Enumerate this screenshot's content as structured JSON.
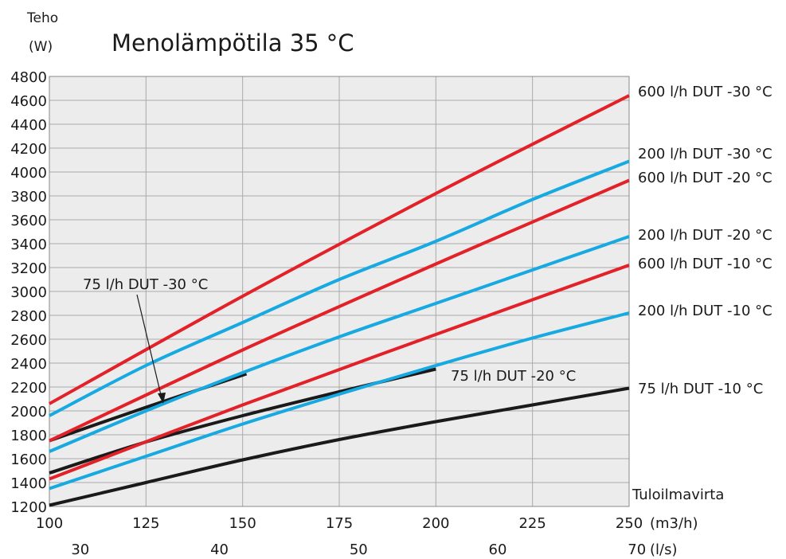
{
  "chart_data": {
    "type": "line",
    "title": "Menolämpötila 35 °C",
    "ylabel_line1": "Teho",
    "ylabel_line2": "(W)",
    "xlabel_line1": "Tuloilmavirta",
    "xlabel_unit_primary": "(m3/h)",
    "xlabel_unit_secondary": "(l/s)",
    "xlim": [
      100,
      250
    ],
    "ylim": [
      1200,
      4800
    ],
    "grid": true,
    "x_ticks": [
      "100",
      "125",
      "150",
      "175",
      "200",
      "225",
      "250"
    ],
    "y_ticks": [
      "1200",
      "1400",
      "1600",
      "1800",
      "2000",
      "2200",
      "2400",
      "2600",
      "2800",
      "3000",
      "3200",
      "3400",
      "3600",
      "3800",
      "4000",
      "4200",
      "4400",
      "4600",
      "4800"
    ],
    "x2_ticks": [
      {
        "ls": 30,
        "label": "30"
      },
      {
        "ls": 40,
        "label": "40"
      },
      {
        "ls": 50,
        "label": "50"
      },
      {
        "ls": 60,
        "label": "60"
      },
      {
        "ls": 70,
        "label": "70"
      }
    ],
    "colors": {
      "red": "#e32128",
      "blue": "#17a9e1",
      "black": "#1a1a1a",
      "grid": "#aaaaaa",
      "plot_bg": "#ececec"
    },
    "series": [
      {
        "name": "600 l/h DUT -30 °C",
        "color": "red",
        "x": [
          100,
          150,
          200,
          250
        ],
        "y": [
          2060,
          2960,
          3820,
          4640
        ]
      },
      {
        "name": "200 l/h DUT -30 °C",
        "color": "blue",
        "x": [
          100,
          125,
          150,
          175,
          200,
          225,
          250
        ],
        "y": [
          1960,
          2380,
          2740,
          3100,
          3420,
          3770,
          4090
        ]
      },
      {
        "name": "600 l/h DUT -20 °C",
        "color": "red",
        "x": [
          100,
          150,
          200,
          250
        ],
        "y": [
          1750,
          2510,
          3230,
          3930
        ]
      },
      {
        "name": "200 l/h DUT -20 °C",
        "color": "blue",
        "x": [
          100,
          125,
          150,
          175,
          200,
          225,
          250
        ],
        "y": [
          1660,
          2000,
          2320,
          2620,
          2900,
          3180,
          3460
        ]
      },
      {
        "name": "600 l/h DUT -10 °C",
        "color": "red",
        "x": [
          100,
          150,
          200,
          250
        ],
        "y": [
          1430,
          2050,
          2640,
          3220
        ]
      },
      {
        "name": "200 l/h DUT -10 °C",
        "color": "blue",
        "x": [
          100,
          125,
          150,
          175,
          200,
          225,
          250
        ],
        "y": [
          1350,
          1620,
          1890,
          2140,
          2380,
          2610,
          2820
        ]
      },
      {
        "name": "75 l/h DUT -30 °C",
        "color": "black",
        "x": [
          100,
          125,
          151
        ],
        "y": [
          1750,
          2030,
          2310
        ]
      },
      {
        "name": "75 l/h DUT -20 °C",
        "color": "black",
        "x": [
          100,
          125,
          150,
          175,
          200
        ],
        "y": [
          1480,
          1740,
          1960,
          2160,
          2350
        ]
      },
      {
        "name": "75 l/h DUT -10 °C",
        "color": "black",
        "x": [
          100,
          125,
          150,
          175,
          200,
          225,
          250
        ],
        "y": [
          1210,
          1400,
          1590,
          1760,
          1910,
          2050,
          2190
        ]
      }
    ]
  }
}
